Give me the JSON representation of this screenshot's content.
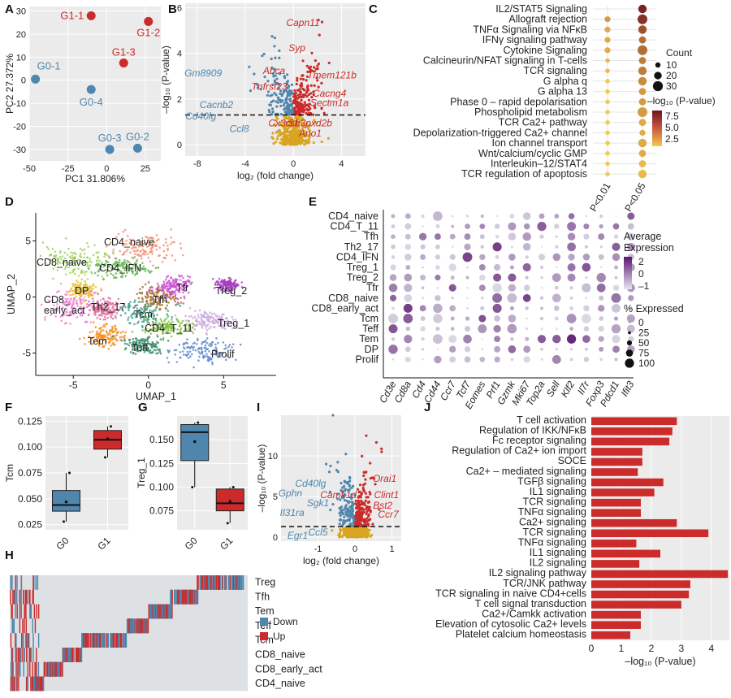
{
  "panel_letters": [
    "A",
    "B",
    "C",
    "D",
    "E",
    "F",
    "G",
    "H",
    "I",
    "J"
  ],
  "colors": {
    "blue": "#4e86ad",
    "red": "#cc2b2b",
    "gold": "#d9a520",
    "gray": "#dddddd",
    "up": "#cc2b2b",
    "down": "#4e86ad"
  },
  "chart_data": [
    {
      "panel": "A",
      "type": "scatter",
      "xlabel": "PC1 31.806%",
      "ylabel": "PC2 27.372%",
      "xlim": [
        -50,
        35
      ],
      "ylim": [
        -35,
        32
      ],
      "xticks": [
        "-50",
        "-25",
        "0",
        "25"
      ],
      "yticks": [
        "-30",
        "-20",
        "-10",
        "0",
        "10",
        "20",
        "30"
      ],
      "points": [
        {
          "label": "G1-1",
          "x": -10,
          "y": 28,
          "group": "G1"
        },
        {
          "label": "G1-2",
          "x": 27,
          "y": 25.5,
          "group": "G1"
        },
        {
          "label": "G1-3",
          "x": 11,
          "y": 7.5,
          "group": "G1"
        },
        {
          "label": "G0-1",
          "x": -46,
          "y": 0.5,
          "group": "G0"
        },
        {
          "label": "G0-4",
          "x": -10,
          "y": -4,
          "group": "G0"
        },
        {
          "label": "G0-3",
          "x": 2,
          "y": -30,
          "group": "G0"
        },
        {
          "label": "G0-2",
          "x": 20,
          "y": -29.5,
          "group": "G0"
        }
      ]
    },
    {
      "panel": "B",
      "type": "scatter",
      "xlabel": "log₂ (fold change)",
      "ylabel": "–log₁₀ (P-value)",
      "xlim": [
        -9,
        6
      ],
      "ylim": [
        -0.5,
        6.2
      ],
      "xticks": [
        "-8",
        "-4",
        "0",
        "4"
      ],
      "yticks": [
        "0",
        "2",
        "4",
        "6"
      ],
      "threshold": 1.3,
      "labels_up": [
        {
          "text": "Capn11",
          "x": 0.8,
          "y": 5.2
        },
        {
          "text": "Syp",
          "x": 0.3,
          "y": 4.1
        },
        {
          "text": "Abca",
          "x": -1.6,
          "y": 3.1
        },
        {
          "text": "Tmem121b",
          "x": 3.2,
          "y": 2.9
        },
        {
          "text": "Tnfrsf23",
          "x": -2.0,
          "y": 2.4
        },
        {
          "text": "Cacng4",
          "x": 3.0,
          "y": 2.1
        },
        {
          "text": "Sectm1a",
          "x": 3.0,
          "y": 1.7
        },
        {
          "text": "Cx3cr1",
          "x": -0.8,
          "y": 0.8
        },
        {
          "text": "Sh3pxd2b",
          "x": 1.4,
          "y": 0.8
        },
        {
          "text": "Ano1",
          "x": 1.4,
          "y": 0.35
        }
      ],
      "labels_down": [
        {
          "text": "Gm8909",
          "x": -7.5,
          "y": 3.0
        },
        {
          "text": "Cacnb2",
          "x": -6.4,
          "y": 1.6
        },
        {
          "text": "Cd40lg",
          "x": -7.7,
          "y": 1.1
        },
        {
          "text": "Ccl8",
          "x": -4.5,
          "y": 0.55
        }
      ]
    },
    {
      "panel": "C",
      "type": "dotplot",
      "columns": [
        "P<0.01",
        "P<0.05"
      ],
      "rows": [
        {
          "term": "IL2/STAT5 Signaling",
          "p01": null,
          "p05": {
            "count": 20,
            "logp": 7.5
          }
        },
        {
          "term": "Allograft rejection",
          "p01": {
            "count": 10,
            "logp": 3.5
          },
          "p05": {
            "count": 25,
            "logp": 7.0
          }
        },
        {
          "term": "TNFα Signaling via NFκB",
          "p01": {
            "count": 10,
            "logp": 3.0
          },
          "p05": {
            "count": 20,
            "logp": 6.0
          }
        },
        {
          "term": "IFNγ signaling pathway",
          "p01": {
            "count": 10,
            "logp": 3.0
          },
          "p05": {
            "count": 15,
            "logp": 5.0
          }
        },
        {
          "term": "Cytokine Signaling",
          "p01": {
            "count": 10,
            "logp": 3.0
          },
          "p05": {
            "count": 25,
            "logp": 5.0
          }
        },
        {
          "term": "Calcineurin/NFAT signaling in T-cells",
          "p01": {
            "count": 5,
            "logp": 2.5
          },
          "p05": {
            "count": 15,
            "logp": 4.5
          }
        },
        {
          "term": "TCR signaling",
          "p01": {
            "count": 5,
            "logp": 2.5
          },
          "p05": {
            "count": 20,
            "logp": 4.5
          }
        },
        {
          "term": "G alpha q",
          "p01": {
            "count": 5,
            "logp": 2.0
          },
          "p05": {
            "count": 20,
            "logp": 4.0
          }
        },
        {
          "term": "G alpha 13",
          "p01": {
            "count": 5,
            "logp": 2.0
          },
          "p05": {
            "count": 15,
            "logp": 3.5
          }
        },
        {
          "term": "Phase 0 – rapid depolarisation",
          "p01": {
            "count": 5,
            "logp": 2.0
          },
          "p05": {
            "count": 15,
            "logp": 3.5
          }
        },
        {
          "term": "Phospholipid metabolism",
          "p01": {
            "count": 5,
            "logp": 2.0
          },
          "p05": {
            "count": 25,
            "logp": 3.5
          }
        },
        {
          "term": "TCR Ca2+ pathway",
          "p01": {
            "count": 5,
            "logp": 2.0
          },
          "p05": {
            "count": 15,
            "logp": 3.0
          }
        },
        {
          "term": "Depolarization-triggered Ca2+ channel",
          "p01": {
            "count": 5,
            "logp": 2.0
          },
          "p05": {
            "count": 10,
            "logp": 3.0
          }
        },
        {
          "term": "Ion channel transport",
          "p01": {
            "count": 5,
            "logp": 2.0
          },
          "p05": {
            "count": 20,
            "logp": 3.0
          }
        },
        {
          "term": "Wnt/calcium/cyclic GMP",
          "p01": {
            "count": 5,
            "logp": 2.0
          },
          "p05": {
            "count": 15,
            "logp": 3.0
          }
        },
        {
          "term": "Interleukin–12/STAT4",
          "p01": {
            "count": 5,
            "logp": 2.0
          },
          "p05": {
            "count": 15,
            "logp": 2.5
          }
        },
        {
          "term": "TCR regulation of apoptosis",
          "p01": {
            "count": 5,
            "logp": 2.0
          },
          "p05": {
            "count": 20,
            "logp": 2.5
          }
        }
      ],
      "size_legend_title": "Count",
      "size_legend": [
        "10",
        "20",
        "30"
      ],
      "color_legend_title": "–log₁₀ (P-value)",
      "color_legend": [
        "7.5",
        "5.0",
        "2.5"
      ]
    },
    {
      "panel": "D",
      "type": "scatter",
      "xlabel": "UMAP_1",
      "ylabel": "UMAP_2",
      "xticks": [
        "-5",
        "0",
        "5"
      ],
      "yticks": [
        "5",
        "0",
        "-5"
      ],
      "clusters": [
        {
          "name": "CD4_naive",
          "color": "#f28d6b"
        },
        {
          "name": "CD8_naive",
          "color": "#9ad25a"
        },
        {
          "name": "CD4_IFN",
          "color": "#5fb34e"
        },
        {
          "name": "DP",
          "color": "#e8c23a"
        },
        {
          "name": "CD8_early_act",
          "color": "#f07ccf"
        },
        {
          "name": "Th2_17",
          "color": "#e26a9a"
        },
        {
          "name": "Tcm",
          "color": "#3fa089"
        },
        {
          "name": "Tfh",
          "color": "#a86a2e"
        },
        {
          "name": "Tfr",
          "color": "#cc4fd2"
        },
        {
          "name": "Treg_2",
          "color": "#a63cc0"
        },
        {
          "name": "Treg_1",
          "color": "#c9a7dd"
        },
        {
          "name": "CD4_T_11",
          "color": "#7fbf3f"
        },
        {
          "name": "Tem",
          "color": "#f39022"
        },
        {
          "name": "Teff",
          "color": "#3a8f6a"
        },
        {
          "name": "Prolif",
          "color": "#5d87c9"
        }
      ],
      "cluster_labels": [
        "CD4_naive",
        "CD8_naive",
        "CD4_IFN",
        "DP",
        "Tfr",
        "Treg_2",
        "CD8_\nearly_act",
        "Th2_17",
        "Tcm",
        "Tfh",
        "Treg_1",
        "CD4_T_11",
        "Tem",
        "Teff",
        "Prolif"
      ]
    },
    {
      "panel": "E",
      "type": "dotplot",
      "rows": [
        "CD4_naive",
        "CD4_T_11",
        "Tfh",
        "Th2_17",
        "CD4_IFN",
        "Treg_1",
        "Treg_2",
        "Tfr",
        "CD8_naive",
        "CD8_early_act",
        "Tcm",
        "Teff",
        "Tem",
        "DP",
        "Prolif"
      ],
      "genes": [
        "Cd3e",
        "Cd8a",
        "Cd4",
        "Cd44",
        "Ccr7",
        "Tcf7",
        "Eomes",
        "Prf1",
        "Gzmk",
        "Mki67",
        "Top2a",
        "Sell",
        "Klf2",
        "Il7r",
        "Foxp3",
        "Pdcd1",
        "Ifit3"
      ],
      "legend_expr_title": "Average Expression",
      "legend_expr": [
        "2",
        "0",
        "–1"
      ],
      "legend_pct_title": "% Expressed",
      "legend_pct": [
        "0",
        "25",
        "50",
        "75",
        "100"
      ]
    },
    {
      "panel": "F",
      "type": "box",
      "ylabel": "Tcm",
      "categories": [
        "G0",
        "G1"
      ],
      "yticks": [
        "0.125",
        "0.100",
        "0.075",
        "0.050",
        "0.025"
      ],
      "ylim": [
        0.02,
        0.13
      ],
      "boxes": [
        {
          "group": "G0",
          "min": 0.028,
          "q1": 0.038,
          "median": 0.044,
          "q3": 0.058,
          "max": 0.075,
          "mean": 0.047
        },
        {
          "group": "G1",
          "min": 0.09,
          "q1": 0.098,
          "median": 0.107,
          "q3": 0.116,
          "max": 0.12,
          "mean": 0.108
        }
      ]
    },
    {
      "panel": "G",
      "type": "box",
      "ylabel": "Treg_1",
      "categories": [
        "G0",
        "G1"
      ],
      "yticks": [
        "0.150",
        "0.125",
        "0.100",
        "0.075"
      ],
      "ylim": [
        0.055,
        0.175
      ],
      "boxes": [
        {
          "group": "G0",
          "min": 0.1,
          "q1": 0.128,
          "median": 0.158,
          "q3": 0.166,
          "max": 0.168,
          "mean": 0.148
        },
        {
          "group": "G1",
          "min": 0.062,
          "q1": 0.075,
          "median": 0.083,
          "q3": 0.098,
          "max": 0.1,
          "mean": 0.085
        }
      ]
    },
    {
      "panel": "H",
      "type": "heatmap",
      "rows": [
        "Treg",
        "Tfh",
        "Tem",
        "Teff",
        "Tcm",
        "CD8_naive",
        "CD8_early_act",
        "CD4_naive"
      ],
      "legend": [
        {
          "label": "Down",
          "color": "#4e86ad"
        },
        {
          "label": "Up",
          "color": "#cc2b2b"
        }
      ]
    },
    {
      "panel": "I",
      "type": "scatter",
      "xlabel": "log₂ (fold change)",
      "ylabel": "–log₁₀ (P-value)",
      "xlim": [
        -2.0,
        1.25
      ],
      "ylim": [
        -0.5,
        15
      ],
      "xticks": [
        "-1",
        "0",
        "1"
      ],
      "yticks": [
        "0",
        "5",
        "10"
      ],
      "threshold": 1.3,
      "labels_up": [
        {
          "text": "Orai1",
          "x": 0.8,
          "y": 6.8
        },
        {
          "text": "Camk1d",
          "x": -0.45,
          "y": 4.8
        },
        {
          "text": "Clint1",
          "x": 0.85,
          "y": 4.8
        },
        {
          "text": "Bst2",
          "x": 0.75,
          "y": 3.5
        },
        {
          "text": "Ccr7",
          "x": 0.9,
          "y": 2.4
        }
      ],
      "labels_down": [
        {
          "text": "Cd40lg",
          "x": -1.2,
          "y": 6.2
        },
        {
          "text": "Gphn",
          "x": -1.75,
          "y": 5.0
        },
        {
          "text": "Sgk1",
          "x": -1.0,
          "y": 3.8
        },
        {
          "text": "Il31ra",
          "x": -1.7,
          "y": 2.6
        },
        {
          "text": "Egr1",
          "x": -1.55,
          "y": -0.2
        },
        {
          "text": "Ccl5",
          "x": -1.0,
          "y": 0.2
        }
      ]
    },
    {
      "panel": "J",
      "type": "bar",
      "orientation": "horizontal",
      "xlabel": "–log₁₀ (P-value)",
      "xlim": [
        0,
        4.6
      ],
      "xticks": [
        "0",
        "1",
        "2",
        "3",
        "4"
      ],
      "categories": [
        "T cell activation",
        "Regulation of IKK/NFκB",
        "Fc receptor signaling",
        "Regulation of Ca2+ ion import",
        "SOCE",
        "Ca2+ – mediated signaling",
        "TGFβ signaling",
        "IL1 signaling",
        "TCR signaling",
        "TNFα signaling",
        "Ca2+ signaling",
        "TCR signaling",
        "TNFα signaling",
        "IL1 signaling",
        "IL2 signaling",
        "IL2 signaling pathway",
        "TCR/JNK pathway",
        "TCR signaling in naive CD4+cells",
        "T cell signal transduction",
        "Ca2+/Camkk activation",
        "Elevation of cytosolic Ca2+ levels",
        "Platelet calcium homeostasis"
      ],
      "values": [
        2.85,
        2.7,
        2.6,
        1.7,
        1.7,
        1.55,
        2.4,
        2.1,
        1.65,
        1.65,
        2.85,
        3.9,
        1.5,
        2.3,
        1.6,
        4.55,
        3.3,
        3.25,
        3.0,
        1.65,
        1.65,
        1.3
      ]
    }
  ]
}
